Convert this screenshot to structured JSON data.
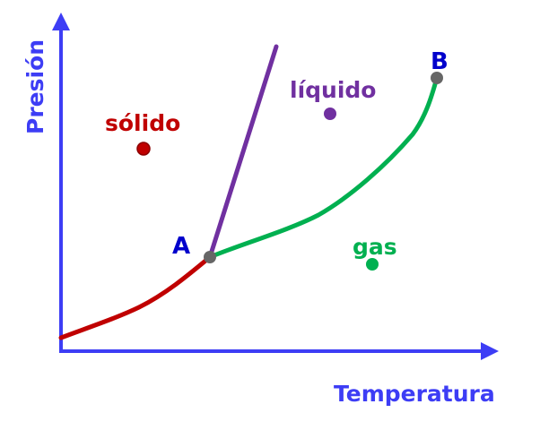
{
  "axes": {
    "y_label": "Presión",
    "x_label": "Temperatura",
    "color": "#3d3df5"
  },
  "regions": {
    "solid": {
      "label": "sólido",
      "color": "#c00000"
    },
    "liquid": {
      "label": "líquido",
      "color": "#7030a0"
    },
    "gas": {
      "label": "gas",
      "color": "#00b050"
    }
  },
  "points": {
    "triple": {
      "label": "A",
      "color": "#0000cc"
    },
    "critical": {
      "label": "B",
      "color": "#0000cc"
    },
    "marker_color": "#666666"
  },
  "curves": {
    "sublimation_color": "#c00000",
    "fusion_color": "#7030a0",
    "vaporization_color": "#00b050"
  }
}
